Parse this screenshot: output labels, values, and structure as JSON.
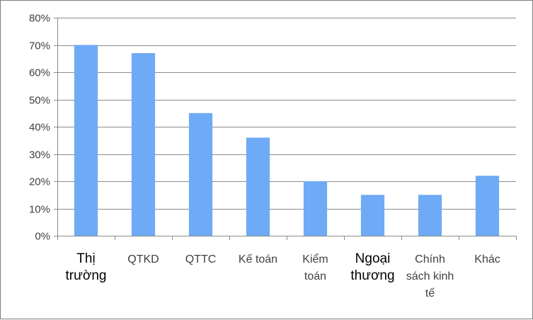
{
  "chart_data": {
    "type": "bar",
    "title": "",
    "xlabel": "",
    "ylabel": "",
    "categories": [
      [
        "Thị",
        "trường"
      ],
      [
        "QTKD"
      ],
      [
        "QTTC"
      ],
      [
        "Kế toán"
      ],
      [
        "Kiểm",
        "toán"
      ],
      [
        "Ngoại",
        "thương"
      ],
      [
        "Chính",
        "sách kinh",
        "tế"
      ],
      [
        "Khác"
      ]
    ],
    "category_emphasis": [
      true,
      false,
      false,
      false,
      false,
      true,
      false,
      false
    ],
    "values": [
      70,
      67,
      45,
      36,
      20,
      15,
      15,
      22
    ],
    "ylim": [
      0,
      80
    ],
    "yticks": [
      "0%",
      "10%",
      "20%",
      "30%",
      "40%",
      "50%",
      "60%",
      "70%",
      "80%"
    ],
    "grid": true,
    "legend": "none",
    "colors": {
      "bar": "#6eaaf5",
      "grid": "#8c8c8c",
      "axis": "#8c8c8c"
    }
  }
}
